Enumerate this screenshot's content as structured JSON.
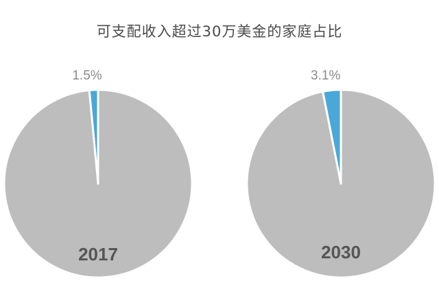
{
  "title": "可支配收入超过30万美金的家庭占比",
  "colors": {
    "rest": "#bdbdbd",
    "highlight": "#4aa8d8",
    "separator": "#ffffff"
  },
  "chart_data": [
    {
      "type": "pie",
      "title": "2017",
      "slices": [
        {
          "value": 1.5,
          "label": "1.5%",
          "color": "#4aa8d8"
        },
        {
          "value": 98.5,
          "label": "",
          "color": "#bdbdbd"
        }
      ]
    },
    {
      "type": "pie",
      "title": "2030",
      "slices": [
        {
          "value": 3.1,
          "label": "3.1%",
          "color": "#4aa8d8"
        },
        {
          "value": 96.9,
          "label": "",
          "color": "#bdbdbd"
        }
      ]
    }
  ]
}
